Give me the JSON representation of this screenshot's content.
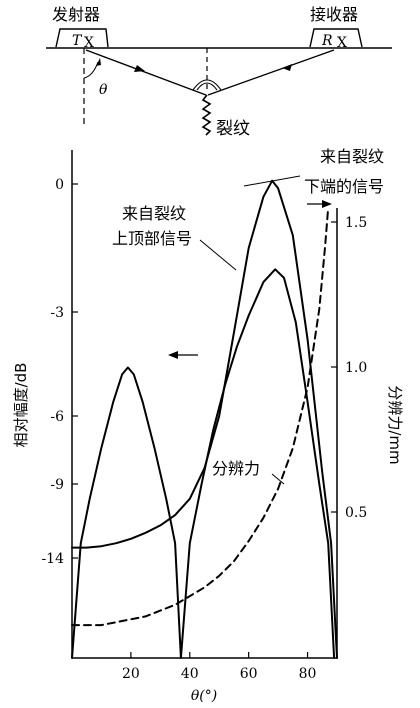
{
  "diagram": {
    "transmitter_label": "发射器",
    "transmitter_probe": "T",
    "transmitter_sub": "X",
    "receiver_label": "接收器",
    "receiver_probe": "R",
    "receiver_sub": "X",
    "angle_symbol": "θ",
    "crack_label": "裂纹"
  },
  "chart_data": {
    "type": "line",
    "xlabel": "θ(°)",
    "ylabel_left": "相对幅度/dB",
    "ylabel_right": "分辨力/mm",
    "xlim": [
      0,
      90
    ],
    "x_ticks": [
      "20",
      "40",
      "60",
      "80"
    ],
    "x_tick_values": [
      20,
      40,
      60,
      80
    ],
    "left_ticks": [
      "0",
      "-3",
      "-6",
      "-9",
      "-14"
    ],
    "right_ticks": [
      "1.5",
      "1.0",
      "0.5"
    ],
    "right_tick_values": [
      1.5,
      1.0,
      0.5
    ],
    "left_axis_note": "non-uniform dB scale",
    "series": [
      {
        "name": "来自裂纹下端的信号",
        "label_line1": "来自裂纹",
        "label_line2": "下端的信号",
        "style": "solid",
        "axis": "left",
        "x": [
          0,
          5,
          10,
          15,
          20,
          25,
          30,
          35,
          40,
          45,
          50,
          55,
          60,
          65,
          68,
          70,
          75,
          80,
          85,
          88,
          90
        ],
        "y_db": [
          -13.3,
          -13.3,
          -13.2,
          -13.0,
          -12.7,
          -12.3,
          -11.8,
          -11.1,
          -10.0,
          -8.3,
          -6.0,
          -3.6,
          -1.5,
          -0.3,
          0.1,
          -0.1,
          -1.2,
          -3.8,
          -8.5,
          -13.0,
          -17.0
        ]
      },
      {
        "name": "来自裂纹上顶部信号",
        "label_line1": "来自裂纹",
        "label_line2": "上顶部信号",
        "style": "solid",
        "axis": "left",
        "x": [
          0,
          3,
          6,
          10,
          14,
          17,
          19,
          21,
          24,
          28,
          32,
          35,
          37,
          40,
          44,
          48,
          52,
          56,
          60,
          65,
          69,
          72,
          76,
          80,
          84,
          87,
          89
        ],
        "y_db": [
          -17.0,
          -13.0,
          -10.0,
          -7.4,
          -5.6,
          -4.8,
          -4.6,
          -4.8,
          -5.6,
          -7.4,
          -10.0,
          -13.0,
          -17.0,
          -13.0,
          -9.0,
          -6.6,
          -5.1,
          -4.0,
          -3.1,
          -2.3,
          -2.0,
          -2.2,
          -3.3,
          -5.6,
          -9.0,
          -13.0,
          -17.0
        ]
      },
      {
        "name": "分辨力",
        "label": "分辨力",
        "style": "dashed",
        "axis": "right",
        "x": [
          0,
          5,
          10,
          15,
          20,
          25,
          30,
          35,
          40,
          45,
          50,
          55,
          60,
          65,
          70,
          75,
          80,
          84,
          86,
          87
        ],
        "y_mm": [
          0.11,
          0.11,
          0.11,
          0.12,
          0.13,
          0.14,
          0.16,
          0.18,
          0.21,
          0.24,
          0.28,
          0.33,
          0.4,
          0.48,
          0.58,
          0.72,
          0.93,
          1.2,
          1.42,
          1.55
        ]
      }
    ]
  }
}
